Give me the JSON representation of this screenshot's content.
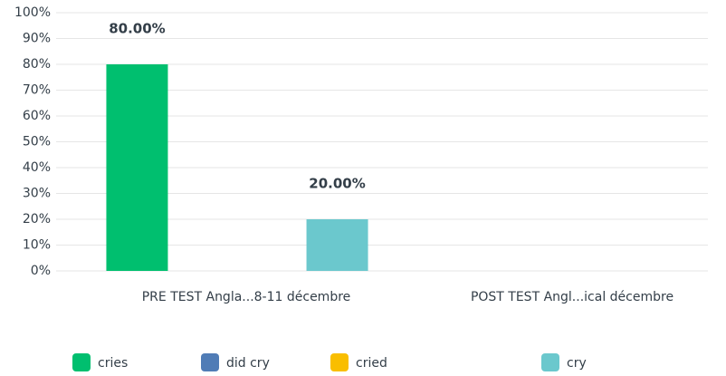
{
  "chart_data": {
    "type": "bar",
    "categories": [
      "PRE TEST Angla...8-11 décembre",
      "POST TEST Angl...ical décembre"
    ],
    "series": [
      {
        "name": "cries",
        "color": "#00bf6f",
        "values": [
          80,
          null
        ],
        "value_labels": [
          "80.00%",
          null
        ]
      },
      {
        "name": "did cry",
        "color": "#507cb6",
        "values": [
          null,
          null
        ]
      },
      {
        "name": "cried",
        "color": "#f9be00",
        "values": [
          null,
          null
        ]
      },
      {
        "name": "cry",
        "color": "#6bc8cd",
        "values": [
          20,
          null
        ],
        "value_labels": [
          "20.00%",
          null
        ]
      }
    ],
    "ylim": [
      0,
      100
    ],
    "yticks": [
      {
        "value": 0,
        "label": "0%"
      },
      {
        "value": 10,
        "label": "10%"
      },
      {
        "value": 20,
        "label": "20%"
      },
      {
        "value": 30,
        "label": "30%"
      },
      {
        "value": 40,
        "label": "40%"
      },
      {
        "value": 50,
        "label": "50%"
      },
      {
        "value": 60,
        "label": "60%"
      },
      {
        "value": 70,
        "label": "70%"
      },
      {
        "value": 80,
        "label": "80%"
      },
      {
        "value": 90,
        "label": "90%"
      },
      {
        "value": 100,
        "label": "100%"
      }
    ],
    "grid": true,
    "legend": "bottom"
  }
}
